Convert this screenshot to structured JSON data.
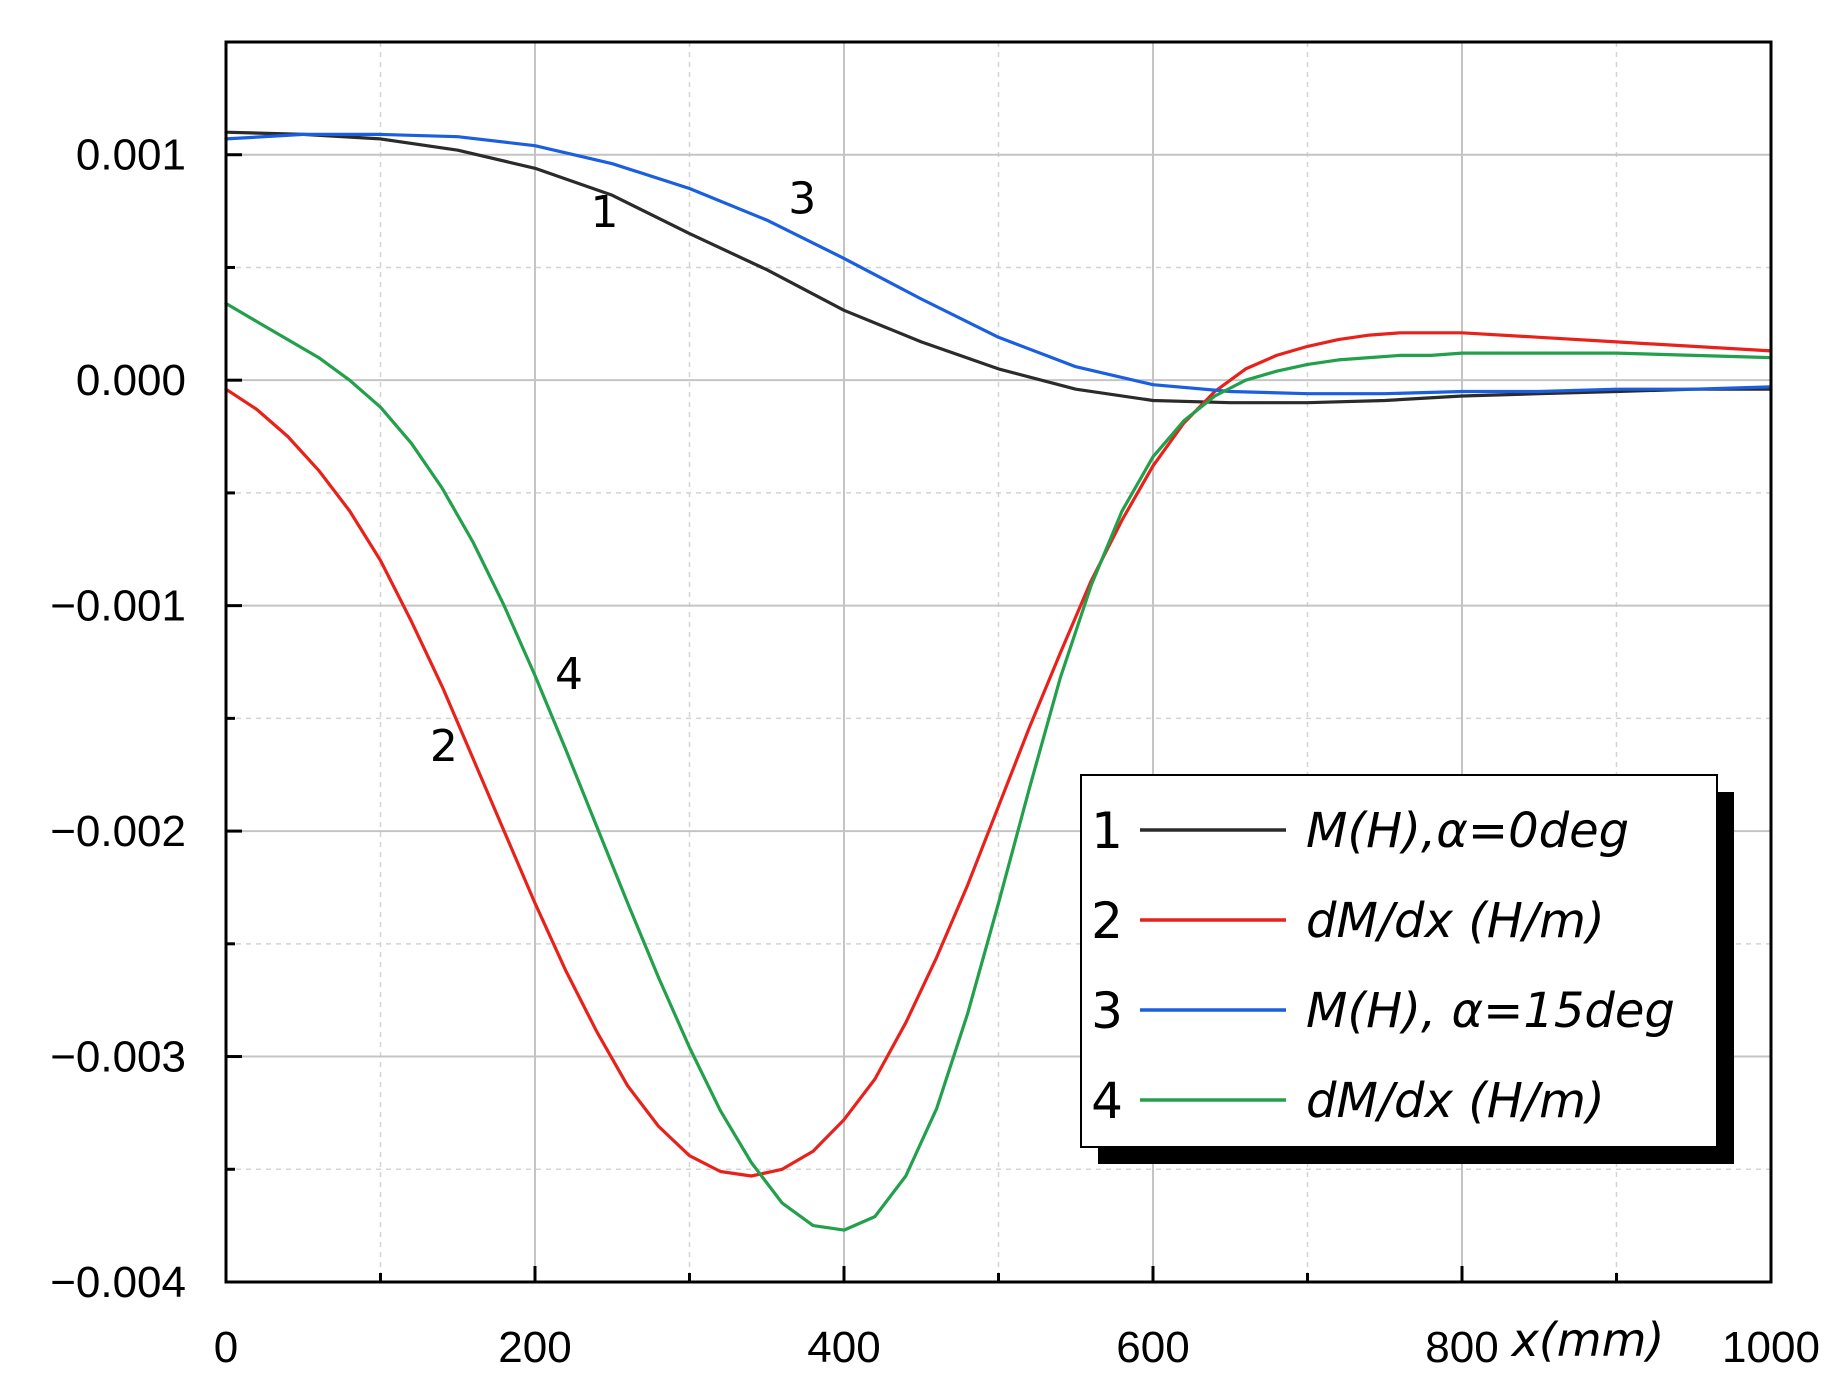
{
  "chart_data": {
    "type": "line",
    "title": "",
    "xlabel": "x(mm)",
    "ylabel": "",
    "xlim": [
      0,
      1000
    ],
    "ylim": [
      -0.004,
      0.0015
    ],
    "xticks": [
      0,
      200,
      400,
      600,
      800,
      1000
    ],
    "xtick_labels": [
      "0",
      "200",
      "400",
      "600",
      "800",
      "1000"
    ],
    "yticks": [
      0.001,
      0.0,
      -0.001,
      -0.002,
      -0.003,
      -0.004
    ],
    "ytick_labels": [
      "0.001",
      "0.000",
      "−0.001",
      "−0.002",
      "−0.003",
      "−0.004"
    ],
    "grid": true,
    "legend_position": "bottom-right",
    "series": [
      {
        "id": "1",
        "name": "M(H),α=0deg",
        "color": "#2b2b2b",
        "x": [
          0,
          50,
          100,
          150,
          200,
          250,
          300,
          350,
          400,
          450,
          500,
          550,
          600,
          650,
          700,
          750,
          800,
          850,
          900,
          950,
          1000
        ],
        "y": [
          0.0011,
          0.00109,
          0.00107,
          0.00102,
          0.00094,
          0.00082,
          0.00065,
          0.00049,
          0.00031,
          0.00017,
          5e-05,
          -4e-05,
          -9e-05,
          -0.0001,
          -0.0001,
          -9e-05,
          -7e-05,
          -6e-05,
          -5e-05,
          -4e-05,
          -4e-05
        ]
      },
      {
        "id": "2",
        "name": "dM/dx (H/m)",
        "color": "#e8221b",
        "x": [
          0,
          20,
          40,
          60,
          80,
          100,
          120,
          140,
          160,
          180,
          200,
          220,
          240,
          260,
          280,
          300,
          320,
          340,
          360,
          380,
          400,
          420,
          440,
          460,
          480,
          500,
          520,
          540,
          560,
          580,
          600,
          620,
          640,
          660,
          680,
          700,
          720,
          740,
          760,
          780,
          800,
          850,
          900,
          950,
          1000
        ],
        "y": [
          -4e-05,
          -0.00013,
          -0.00025,
          -0.0004,
          -0.00058,
          -0.0008,
          -0.00107,
          -0.00136,
          -0.00168,
          -0.002,
          -0.00232,
          -0.00262,
          -0.00289,
          -0.00313,
          -0.00331,
          -0.00344,
          -0.00351,
          -0.00353,
          -0.0035,
          -0.00342,
          -0.00328,
          -0.0031,
          -0.00285,
          -0.00256,
          -0.00224,
          -0.00189,
          -0.00154,
          -0.00121,
          -0.00089,
          -0.00062,
          -0.00038,
          -0.00019,
          -5e-05,
          5e-05,
          0.00011,
          0.00015,
          0.00018,
          0.0002,
          0.00021,
          0.00021,
          0.00021,
          0.00019,
          0.00017,
          0.00015,
          0.00013
        ]
      },
      {
        "id": "3",
        "name": "M(H), α=15deg",
        "color": "#1a5fe0",
        "x": [
          0,
          50,
          100,
          150,
          200,
          250,
          300,
          350,
          400,
          450,
          500,
          550,
          600,
          650,
          700,
          750,
          800,
          850,
          900,
          950,
          1000
        ],
        "y": [
          0.00107,
          0.00109,
          0.00109,
          0.00108,
          0.00104,
          0.00096,
          0.00085,
          0.00071,
          0.00054,
          0.00036,
          0.00019,
          6e-05,
          -2e-05,
          -5e-05,
          -6e-05,
          -6e-05,
          -5e-05,
          -5e-05,
          -4e-05,
          -4e-05,
          -3e-05
        ]
      },
      {
        "id": "4",
        "name": "dM/dx (H/m)",
        "color": "#22a04b",
        "x": [
          0,
          20,
          40,
          60,
          80,
          100,
          120,
          140,
          160,
          180,
          200,
          220,
          240,
          260,
          280,
          300,
          320,
          340,
          360,
          380,
          400,
          420,
          440,
          460,
          480,
          500,
          520,
          540,
          560,
          580,
          600,
          620,
          640,
          660,
          680,
          700,
          720,
          740,
          760,
          780,
          800,
          850,
          900,
          950,
          1000
        ],
        "y": [
          0.00034,
          0.00026,
          0.00018,
          0.0001,
          0.0,
          -0.00012,
          -0.00028,
          -0.00048,
          -0.00072,
          -0.001,
          -0.00131,
          -0.00164,
          -0.00198,
          -0.00232,
          -0.00265,
          -0.00296,
          -0.00324,
          -0.00347,
          -0.00365,
          -0.00375,
          -0.00377,
          -0.00371,
          -0.00353,
          -0.00323,
          -0.00281,
          -0.00232,
          -0.00181,
          -0.00132,
          -0.00091,
          -0.00058,
          -0.00034,
          -0.00018,
          -7e-05,
          0.0,
          4e-05,
          7e-05,
          9e-05,
          0.0001,
          0.00011,
          0.00011,
          0.00012,
          0.00012,
          0.00012,
          0.00011,
          0.0001
        ]
      }
    ],
    "annotations": [
      {
        "text": "1",
        "x": 245,
        "y": 0.00068
      },
      {
        "text": "3",
        "x": 373,
        "y": 0.00074
      },
      {
        "text": "4",
        "x": 222,
        "y": -0.00137
      },
      {
        "text": "2",
        "x": 141,
        "y": -0.00169
      }
    ]
  }
}
